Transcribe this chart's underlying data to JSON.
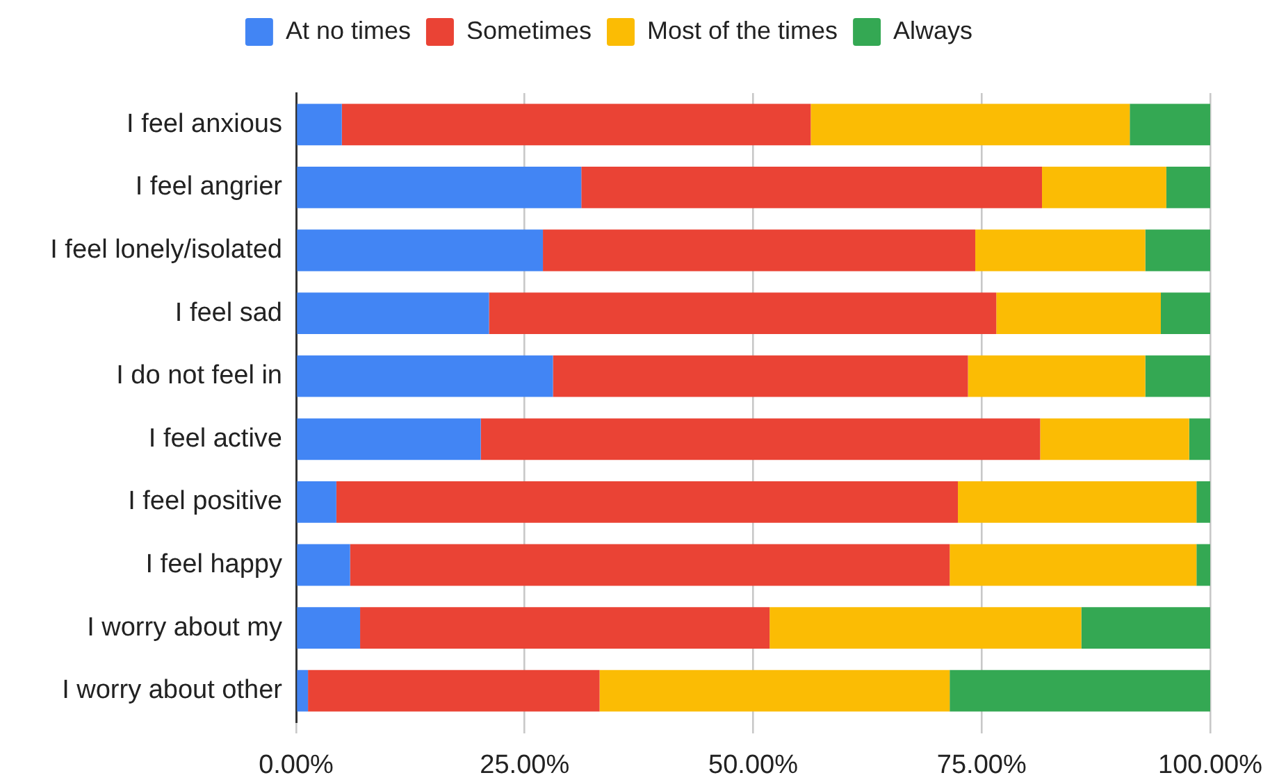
{
  "chart_data": {
    "type": "bar",
    "orientation": "horizontal",
    "stacked": true,
    "categories": [
      "I feel anxious",
      "I feel angrier",
      "I feel lonely/isolated",
      "I feel sad",
      "I do not feel in",
      "I feel active",
      "I feel positive",
      "I feel happy",
      "I worry about my",
      "I worry about other"
    ],
    "series": [
      {
        "name": "At no times",
        "color": "#4285f4",
        "values": [
          5.0,
          31.2,
          27.0,
          21.1,
          28.1,
          20.2,
          4.4,
          5.9,
          7.0,
          1.3
        ]
      },
      {
        "name": "Sometimes",
        "color": "#ea4335",
        "values": [
          51.3,
          50.4,
          47.3,
          55.5,
          45.4,
          61.2,
          68.0,
          65.6,
          44.8,
          31.9
        ]
      },
      {
        "name": "Most of the times",
        "color": "#fbbc04",
        "values": [
          34.9,
          13.6,
          18.6,
          18.0,
          19.4,
          16.3,
          26.1,
          27.0,
          34.1,
          38.3
        ]
      },
      {
        "name": "Always",
        "color": "#34a853",
        "values": [
          8.8,
          4.8,
          7.1,
          5.4,
          7.1,
          2.3,
          1.5,
          1.5,
          14.1,
          28.5
        ]
      }
    ],
    "xlim": [
      0,
      100
    ],
    "xticks": [
      {
        "value": 0,
        "label": "0.00%"
      },
      {
        "value": 25,
        "label": "25.00%"
      },
      {
        "value": 50,
        "label": "50.00%"
      },
      {
        "value": 75,
        "label": "75.00%"
      },
      {
        "value": 100,
        "label": "100.00%"
      }
    ],
    "grid": "x",
    "legend": "top"
  }
}
